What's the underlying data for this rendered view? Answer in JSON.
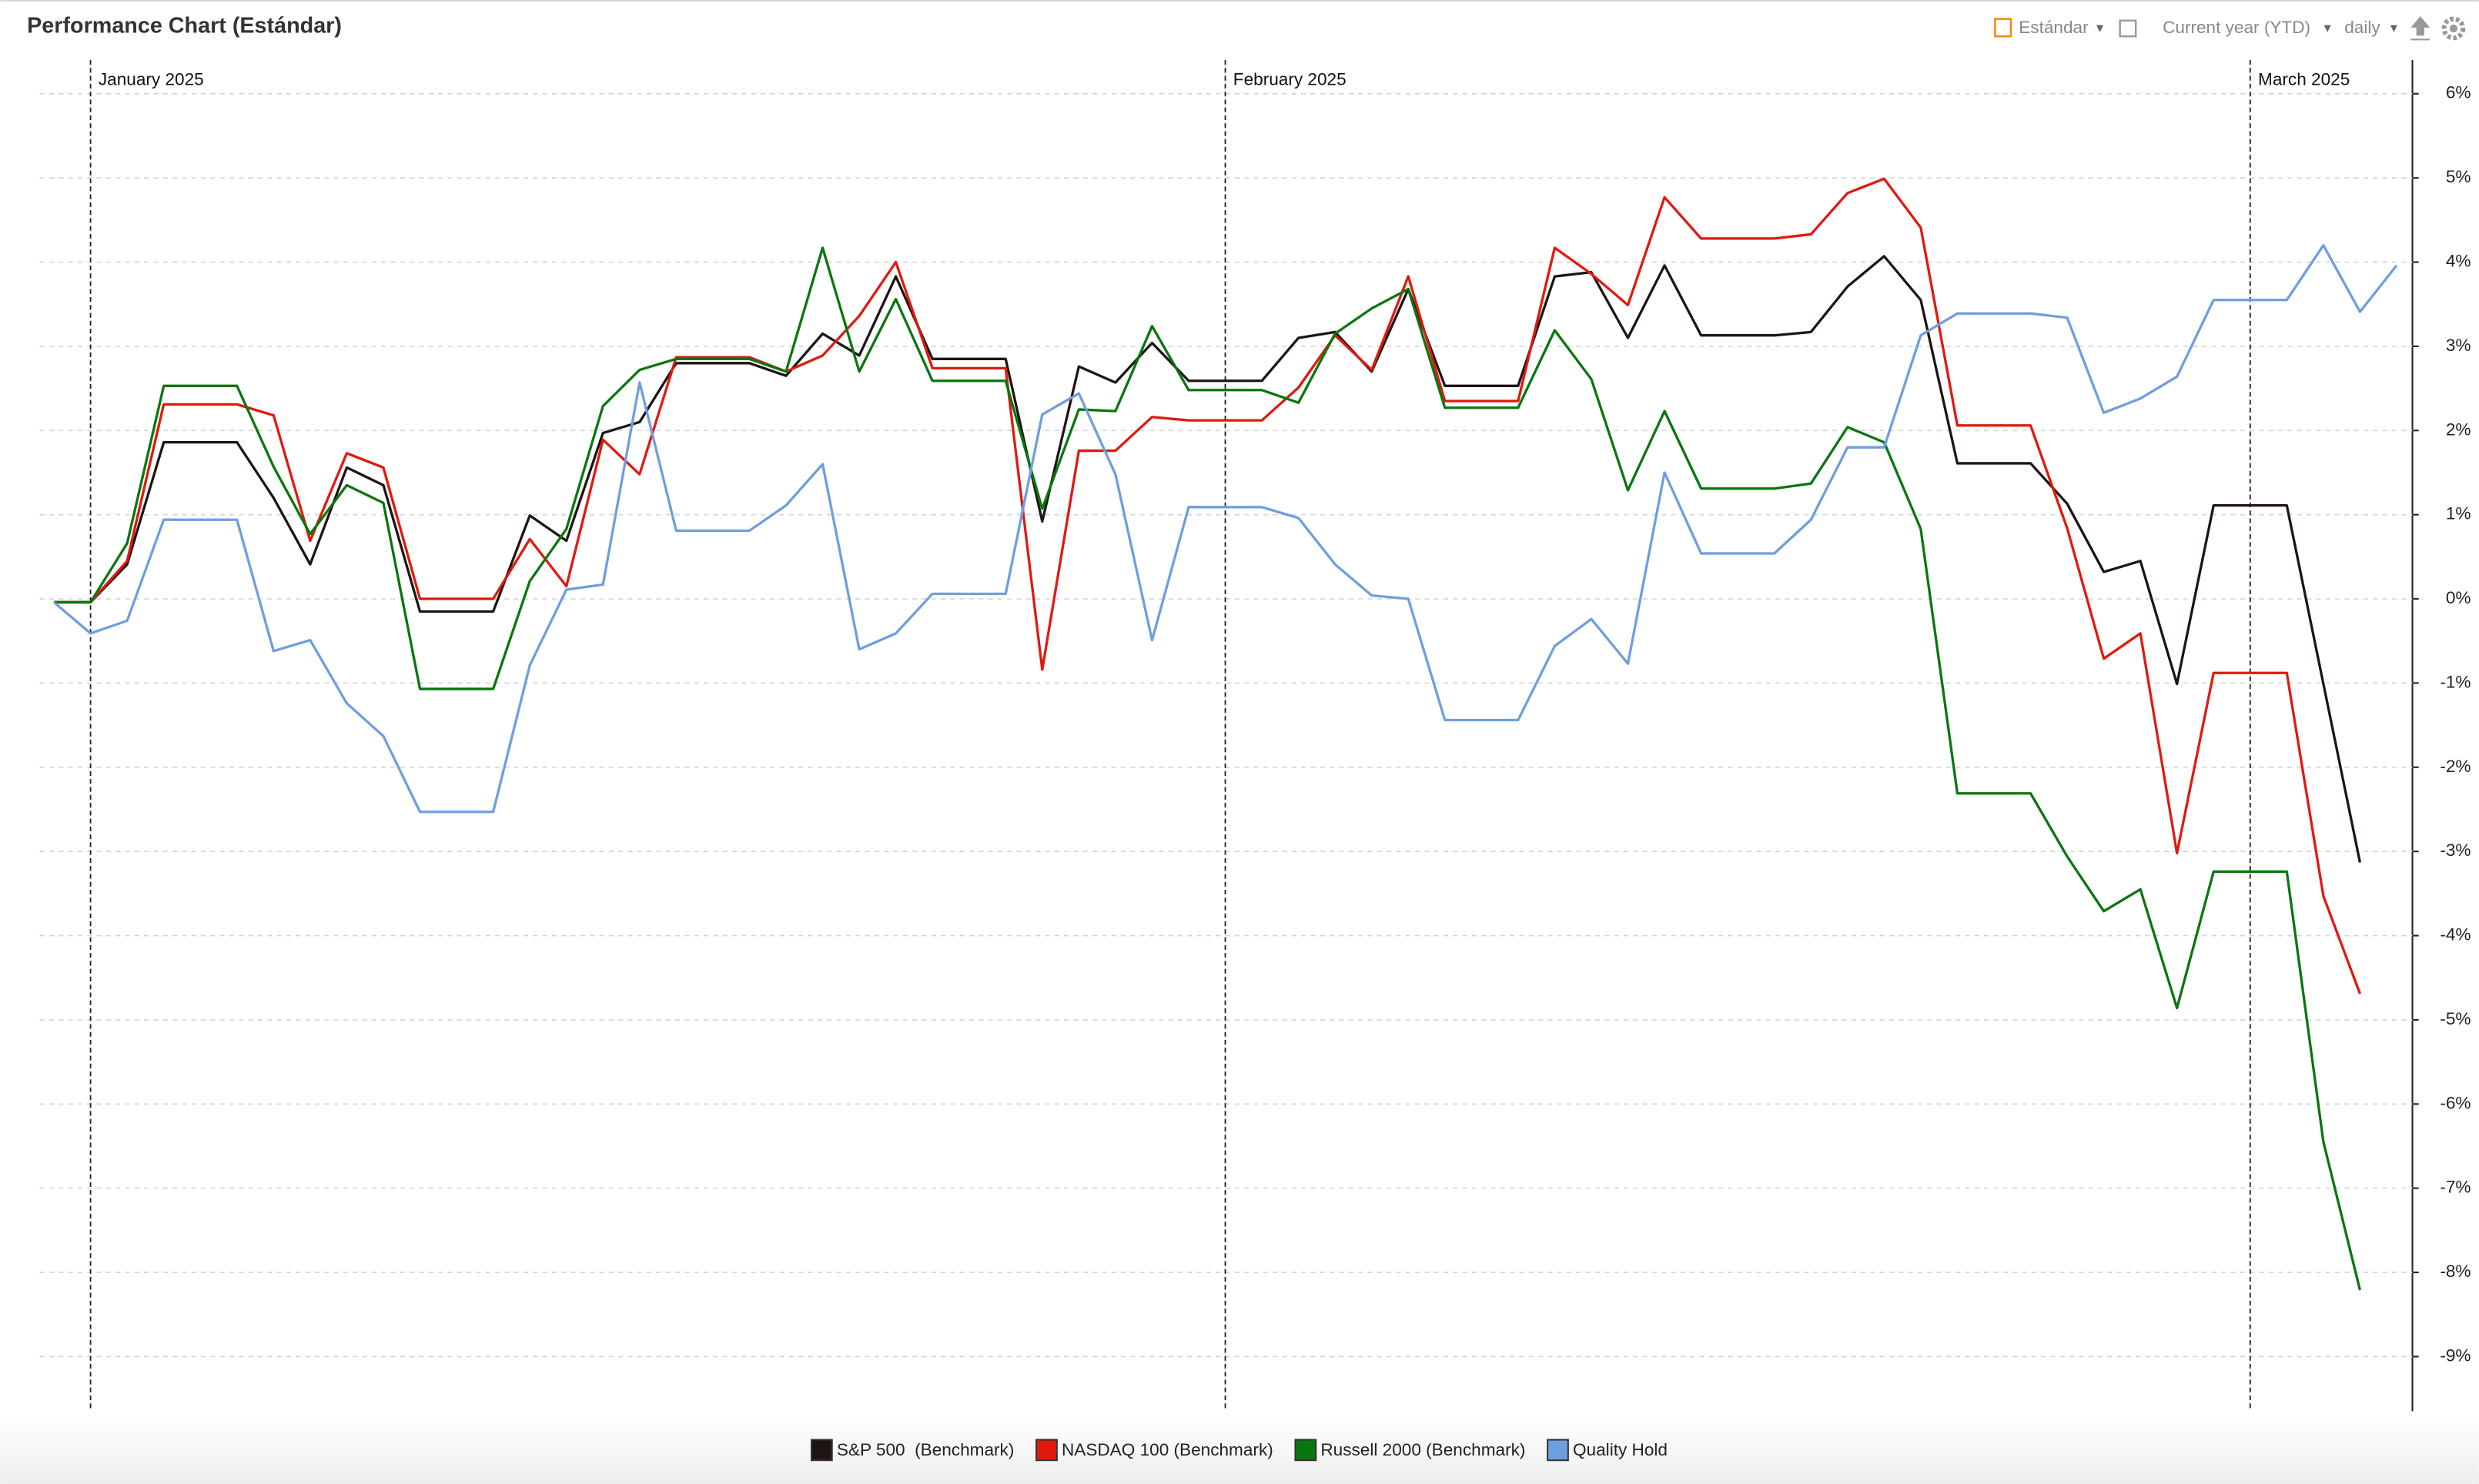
{
  "header": {
    "title": "Performance Chart (Estándar)",
    "toolbar": [
      "Estándar",
      "Current year (YTD)",
      "daily"
    ]
  },
  "chart_data": {
    "type": "line",
    "categories": [
      null,
      null,
      null,
      null,
      null,
      null,
      null,
      null,
      null,
      null,
      null,
      null,
      null,
      null,
      null,
      null,
      null,
      null,
      null,
      null,
      null,
      null,
      null,
      null,
      null,
      null,
      null,
      null,
      null,
      null,
      null,
      null,
      null,
      null,
      null,
      null,
      null,
      null,
      null,
      null,
      null,
      null,
      null,
      null,
      null,
      null,
      null,
      null,
      null,
      null,
      null,
      null,
      null,
      null,
      null,
      null,
      null,
      null,
      null,
      null,
      null,
      null,
      null,
      null,
      null
    ],
    "annotations": [
      {
        "label": "January 2025",
        "at": 1
      },
      {
        "label": "February 2025",
        "at": 32
      },
      {
        "label": "March 2025",
        "at": 60
      }
    ],
    "ylim": [
      -9.65,
      6.4
    ],
    "yticks": [
      {
        "value": 6,
        "label": "6%"
      },
      {
        "value": 5,
        "label": "5%"
      },
      {
        "value": 4,
        "label": "4%"
      },
      {
        "value": 3,
        "label": "3%"
      },
      {
        "value": 2,
        "label": "2%"
      },
      {
        "value": 1,
        "label": "1%"
      },
      {
        "value": 0,
        "label": "0%"
      },
      {
        "value": -1,
        "label": "-1%"
      },
      {
        "value": -2,
        "label": "-2%"
      },
      {
        "value": -3,
        "label": "-3%"
      },
      {
        "value": -4,
        "label": "-4%"
      },
      {
        "value": -5,
        "label": "-5%"
      },
      {
        "value": -6,
        "label": "-6%"
      },
      {
        "value": -7,
        "label": "-7%"
      },
      {
        "value": -8,
        "label": "-8%"
      },
      {
        "value": -9,
        "label": "-9%"
      }
    ],
    "grid": true,
    "series": [
      {
        "name": "S&P 500  (Benchmark)",
        "color": "#1e1414",
        "values": [
          -0.04,
          -0.04,
          0.41,
          1.86,
          1.86,
          1.86,
          1.2,
          0.41,
          1.56,
          1.35,
          -0.15,
          -0.15,
          -0.15,
          0.99,
          0.69,
          1.97,
          2.1,
          2.8,
          2.8,
          2.8,
          2.65,
          3.15,
          2.89,
          3.83,
          2.85,
          2.85,
          2.85,
          0.92,
          2.76,
          2.57,
          3.04,
          2.59,
          2.59,
          2.59,
          3.1,
          3.17,
          2.7,
          3.68,
          2.53,
          2.53,
          2.53,
          3.83,
          3.88,
          3.1,
          3.96,
          3.13,
          3.13,
          3.13,
          3.17,
          3.71,
          4.07,
          3.55,
          1.61,
          1.61,
          1.61,
          1.13,
          0.32,
          0.45,
          -1.01,
          1.11,
          1.11,
          1.11,
          -1.01,
          -3.13,
          null
        ]
      },
      {
        "name": "NASDAQ 100 (Benchmark)",
        "color": "#e0190f",
        "values": [
          -0.04,
          -0.04,
          0.45,
          2.31,
          2.31,
          2.31,
          2.18,
          0.69,
          1.73,
          1.56,
          0,
          0,
          0,
          0.71,
          0.15,
          1.89,
          1.48,
          2.87,
          2.87,
          2.87,
          2.7,
          2.89,
          3.36,
          4.0,
          2.74,
          2.74,
          2.74,
          -0.84,
          1.76,
          1.76,
          2.16,
          2.12,
          2.12,
          2.12,
          2.51,
          3.13,
          2.72,
          3.83,
          2.35,
          2.35,
          2.35,
          4.17,
          3.86,
          3.49,
          4.77,
          4.28,
          4.28,
          4.28,
          4.33,
          4.82,
          4.99,
          4.41,
          2.06,
          2.06,
          2.06,
          0.84,
          -0.71,
          -0.41,
          -3.02,
          -0.88,
          -0.88,
          -0.88,
          -3.53,
          -4.69,
          null
        ]
      },
      {
        "name": "Russell 2000 (Benchmark)",
        "color": "#0a760f",
        "values": [
          -0.04,
          -0.04,
          0.66,
          2.53,
          2.53,
          2.53,
          1.57,
          0.77,
          1.35,
          1.14,
          -1.07,
          -1.07,
          -1.07,
          0.21,
          0.83,
          2.29,
          2.72,
          2.85,
          2.85,
          2.85,
          2.7,
          4.17,
          2.7,
          3.56,
          2.59,
          2.59,
          2.59,
          1.07,
          2.25,
          2.23,
          3.24,
          2.48,
          2.48,
          2.48,
          2.33,
          3.15,
          3.45,
          3.68,
          2.27,
          2.27,
          2.27,
          3.19,
          2.61,
          1.29,
          2.23,
          1.31,
          1.31,
          1.31,
          1.37,
          2.04,
          1.86,
          0.83,
          -2.31,
          -2.31,
          -2.31,
          -3.06,
          -3.71,
          -3.45,
          -4.86,
          -3.24,
          -3.24,
          -3.24,
          -6.45,
          -8.21,
          null
        ]
      },
      {
        "name": "Quality Hold",
        "color": "#6f9ede",
        "values": [
          -0.04,
          -0.41,
          -0.26,
          0.94,
          0.94,
          0.94,
          -0.62,
          -0.49,
          -1.24,
          -1.63,
          -2.53,
          -2.53,
          -2.53,
          -0.79,
          0.11,
          0.17,
          2.57,
          0.81,
          0.81,
          0.81,
          1.11,
          1.6,
          -0.6,
          -0.41,
          0.06,
          0.06,
          0.06,
          2.19,
          2.44,
          1.48,
          -0.49,
          1.09,
          1.09,
          1.09,
          0.96,
          0.41,
          0.04,
          0,
          -1.44,
          -1.44,
          -1.44,
          -0.56,
          -0.24,
          -0.77,
          1.5,
          0.54,
          0.54,
          0.54,
          0.94,
          1.8,
          1.8,
          3.13,
          3.39,
          3.39,
          3.39,
          3.34,
          2.21,
          2.38,
          2.64,
          3.55,
          3.55,
          3.55,
          4.2,
          3.41,
          3.96
        ]
      }
    ]
  }
}
